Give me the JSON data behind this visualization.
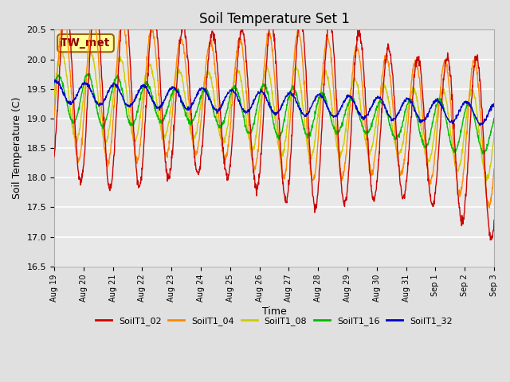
{
  "title": "Soil Temperature Set 1",
  "xlabel": "Time",
  "ylabel": "Soil Temperature (C)",
  "ylim": [
    16.5,
    20.5
  ],
  "annotation": "TW_met",
  "annotation_color": "#8B0000",
  "annotation_bg": "#FFFF99",
  "annotation_border": "#996600",
  "line_colors": {
    "SoilT1_02": "#CC0000",
    "SoilT1_04": "#FF8800",
    "SoilT1_08": "#CCCC00",
    "SoilT1_16": "#00BB00",
    "SoilT1_32": "#0000CC"
  },
  "legend_labels": [
    "SoilT1_02",
    "SoilT1_04",
    "SoilT1_08",
    "SoilT1_16",
    "SoilT1_32"
  ],
  "background_color": "#E8E8E8",
  "grid_color": "#FFFFFF",
  "x_tick_labels": [
    "Aug 19",
    "Aug 20",
    "Aug 21",
    "Aug 22",
    "Aug 23",
    "Aug 24",
    "Aug 25",
    "Aug 26",
    "Aug 27",
    "Aug 28",
    "Aug 29",
    "Aug 30",
    "Aug 31",
    "Sep 1",
    "Sep 2",
    "Sep 3"
  ],
  "x_tick_positions": [
    0,
    1,
    2,
    3,
    4,
    5,
    6,
    7,
    8,
    9,
    10,
    11,
    12,
    13,
    14,
    15
  ]
}
